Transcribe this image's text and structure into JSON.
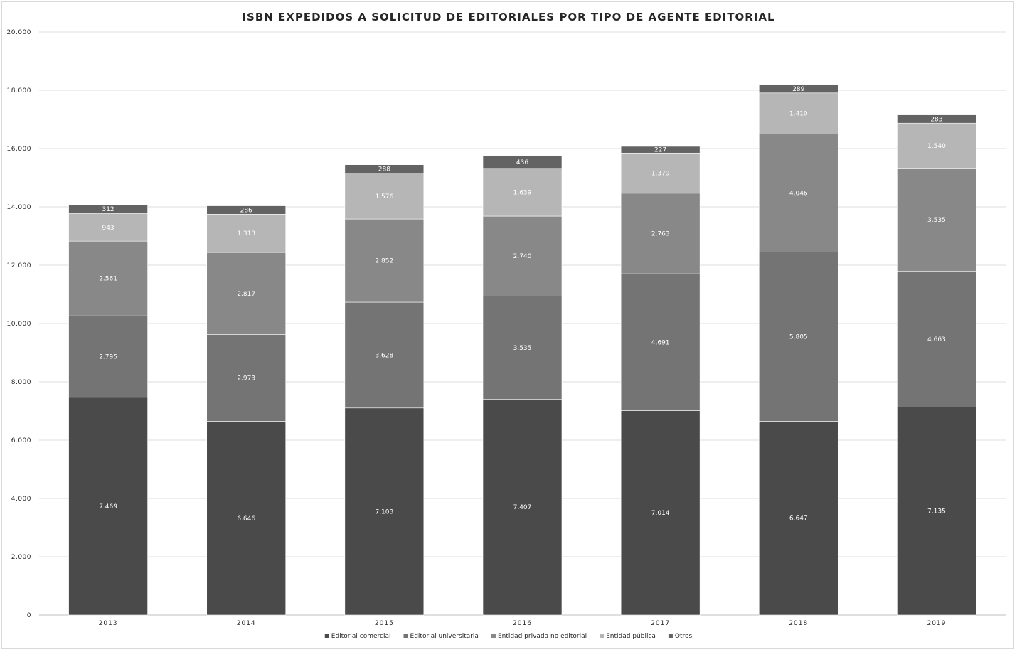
{
  "chart_data": {
    "type": "bar",
    "stacked": true,
    "title": "ISBN EXPEDIDOS A SOLICITUD DE EDITORIALES POR TIPO DE AGENTE EDITORIAL",
    "xlabel": "",
    "ylabel": "",
    "ylim": [
      0,
      20000
    ],
    "yticks": [
      "0",
      "2.000",
      "4.000",
      "6.000",
      "8.000",
      "10.000",
      "12.000",
      "14.000",
      "16.000",
      "18.000",
      "20.000"
    ],
    "grid": true,
    "legend_position": "bottom",
    "categories": [
      "2013",
      "2014",
      "2015",
      "2016",
      "2017",
      "2018",
      "2019"
    ],
    "series": [
      {
        "name": "Editorial comercial",
        "color": "#4a4a4a",
        "values": [
          7469,
          6646,
          7103,
          7407,
          7014,
          6647,
          7135
        ],
        "labels": [
          "7.469",
          "6.646",
          "7.103",
          "7.407",
          "7.014",
          "6.647",
          "7.135"
        ]
      },
      {
        "name": "Editorial universitaria",
        "color": "#747474",
        "values": [
          2795,
          2973,
          3628,
          3535,
          4691,
          5805,
          4663
        ],
        "labels": [
          "2.795",
          "2.973",
          "3.628",
          "3.535",
          "4.691",
          "5.805",
          "4.663"
        ]
      },
      {
        "name": "Entidad privada no editorial",
        "color": "#888888",
        "values": [
          2561,
          2817,
          2852,
          2740,
          2763,
          4046,
          3535
        ],
        "labels": [
          "2.561",
          "2.817",
          "2.852",
          "2.740",
          "2.763",
          "4.046",
          "3.535"
        ]
      },
      {
        "name": "Entidad pública",
        "color": "#b6b6b6",
        "values": [
          943,
          1313,
          1576,
          1639,
          1379,
          1410,
          1540
        ],
        "labels": [
          "943",
          "1.313",
          "1.576",
          "1.639",
          "1.379",
          "1.410",
          "1.540"
        ]
      },
      {
        "name": "Otros",
        "color": "#636363",
        "values": [
          312,
          286,
          288,
          436,
          227,
          289,
          283
        ],
        "labels": [
          "312",
          "286",
          "288",
          "436",
          "227",
          "289",
          "283"
        ]
      }
    ]
  }
}
